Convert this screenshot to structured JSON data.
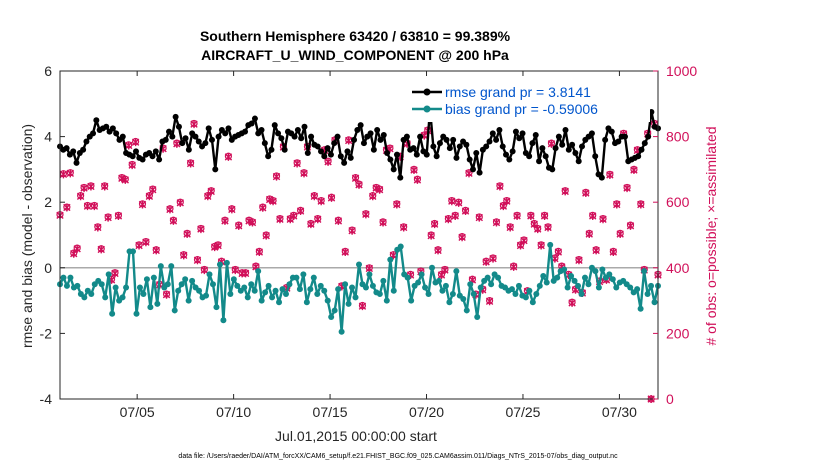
{
  "chart_data": {
    "type": "line",
    "title": "Southern Hemisphere 63420 / 63810 = 99.389%",
    "subtitle": "AIRCRAFT_U_WIND_COMPONENT @ 200 hPa",
    "xlabel": "Jul.01,2015 00:00:00 start",
    "ylabel": "rmse and bias (model - observation)",
    "ylabel_right": "# of obs: o=possible; ×=assimilated",
    "xlim": [
      1,
      32
    ],
    "ylim": [
      -4,
      6
    ],
    "ylim_right": [
      0,
      1000
    ],
    "x_tick_values": [
      5,
      10,
      15,
      20,
      25,
      30
    ],
    "x_tick_labels": [
      "07/05",
      "07/10",
      "07/15",
      "07/20",
      "07/25",
      "07/30"
    ],
    "y_ticks": [
      -4,
      -2,
      0,
      2,
      4,
      6
    ],
    "y_ticks_right": [
      0,
      200,
      400,
      600,
      800,
      1000
    ],
    "colors": {
      "rmse": "#000000",
      "bias": "#138a8a",
      "obs": "#d1105a",
      "zero_line": "#aaaaaa",
      "legend_text": "#0055cc"
    },
    "series": [
      {
        "name": "rmse grand pr = 3.8141",
        "axis": "left",
        "values": [
          3.7,
          3.6,
          3.65,
          3.45,
          3.55,
          3.2,
          3.5,
          3.6,
          3.85,
          4.0,
          4.1,
          4.5,
          4.2,
          4.25,
          4.3,
          4.15,
          4.25,
          4.1,
          3.9,
          4.0,
          3.5,
          3.45,
          3.4,
          3.55,
          3.35,
          3.3,
          3.45,
          3.5,
          3.4,
          3.55,
          3.3,
          3.85,
          3.9,
          4.15,
          4.0,
          4.6,
          4.3,
          3.8,
          3.95,
          3.6,
          4.1,
          4.0,
          3.85,
          3.7,
          3.8,
          4.25,
          3.9,
          3.0,
          4.0,
          4.2,
          4.1,
          4.25,
          3.9,
          4.0,
          4.05,
          4.1,
          4.15,
          4.35,
          4.4,
          4.55,
          4.1,
          4.2,
          3.8,
          3.4,
          3.6,
          4.35,
          4.1,
          3.95,
          3.6,
          4.15,
          4.1,
          4.0,
          4.2,
          3.95,
          4.3,
          3.5,
          4.0,
          3.75,
          3.7,
          3.55,
          3.4,
          3.65,
          3.45,
          3.8,
          4.0,
          3.4,
          3.2,
          3.55,
          3.35,
          3.9,
          4.2,
          4.35,
          3.8,
          4.0,
          4.1,
          3.6,
          4.2,
          3.9,
          4.05,
          3.5,
          3.3,
          3.0,
          3.45,
          2.75,
          3.9,
          4.0,
          3.6,
          3.65,
          3.45,
          4.0,
          3.55,
          3.45,
          4.85,
          3.7,
          3.4,
          3.8,
          4.0,
          3.9,
          3.65,
          3.9,
          3.35,
          3.7,
          3.85,
          3.75,
          3.3,
          3.0,
          3.5,
          2.9,
          3.6,
          3.7,
          3.85,
          4.1,
          3.9,
          4.2,
          3.7,
          3.45,
          3.3,
          3.55,
          4.15,
          3.95,
          4.1,
          3.5,
          3.4,
          3.8,
          4.05,
          3.25,
          3.65,
          3.4,
          3.05,
          3.0,
          3.65,
          4.0,
          3.75,
          4.2,
          3.6,
          3.75,
          3.5,
          3.25,
          3.7,
          3.9,
          4.0,
          4.1,
          3.4,
          2.85,
          2.75,
          3.9,
          4.25,
          4.15,
          3.8,
          3.85,
          4.0,
          4.0,
          3.25,
          3.3,
          3.35,
          3.4,
          3.6,
          3.8,
          4.0,
          4.75,
          4.3,
          4.25
        ]
      },
      {
        "name": "bias grand pr = -0.59006",
        "axis": "left",
        "values": [
          -0.5,
          -0.3,
          -0.55,
          -0.3,
          -0.6,
          -0.55,
          -0.8,
          -0.9,
          -0.7,
          -0.8,
          -0.5,
          -0.4,
          -0.5,
          -0.9,
          -0.2,
          -1.4,
          -0.6,
          -1.0,
          -0.9,
          -0.6,
          0.5,
          0.5,
          -1.4,
          -0.6,
          -0.8,
          -0.35,
          -1.2,
          -0.3,
          -1.1,
          0.05,
          -0.6,
          -0.5,
          0.05,
          -1.3,
          -0.7,
          -0.5,
          -0.35,
          -1.0,
          -0.4,
          -0.6,
          -0.7,
          -0.9,
          -0.85,
          -0.2,
          -0.5,
          -1.2,
          0.1,
          -1.6,
          0.15,
          -0.8,
          -0.35,
          -0.55,
          -0.7,
          -0.6,
          -0.9,
          -0.5,
          -0.7,
          -0.1,
          -1.0,
          -0.75,
          -0.55,
          -0.9,
          -0.7,
          -1.05,
          -0.65,
          -0.8,
          -0.5,
          -0.3,
          -0.3,
          -0.65,
          -0.2,
          -1.05,
          -0.65,
          -0.3,
          -0.8,
          -0.55,
          -0.7,
          -1.0,
          -1.5,
          -1.3,
          -0.65,
          -1.95,
          -0.5,
          -1.1,
          -0.6,
          -0.9,
          0.1,
          -0.5,
          -0.6,
          -0.2,
          -0.55,
          -0.75,
          -0.8,
          -0.4,
          -1.0,
          0.25,
          -0.7,
          0.55,
          0.65,
          -0.2,
          -0.3,
          -1.0,
          -0.55,
          -0.45,
          -0.2,
          -0.6,
          -0.8,
          0.0,
          -0.45,
          -0.4,
          -0.7,
          -0.55,
          -1.05,
          -0.8,
          -0.1,
          -0.85,
          -0.95,
          -1.3,
          -0.5,
          -0.8,
          -1.5,
          -0.6,
          -0.4,
          -0.3,
          -0.5,
          -0.2,
          -0.3,
          -0.55,
          -0.6,
          -0.7,
          -0.65,
          -0.8,
          -0.55,
          -0.85,
          -0.9,
          -0.7,
          -1.05,
          -0.8,
          -0.55,
          -0.25,
          -0.45,
          0.7,
          -0.4,
          -0.3,
          -0.1,
          -0.05,
          -0.6,
          -0.25,
          -0.4,
          -0.55,
          -0.8,
          -0.3,
          -0.5,
          0.0,
          -0.1,
          -0.6,
          -0.05,
          -0.3,
          -0.2,
          -0.35,
          -0.6,
          -0.45,
          -0.4,
          -0.5,
          -0.6,
          -0.75,
          -0.65,
          -1.25,
          -0.1,
          -0.8,
          -0.55,
          -1.05,
          -0.55
        ]
      },
      {
        "name": "obs possible",
        "axis": "right",
        "values": [
          562,
          687,
          585,
          690,
          445,
          460,
          620,
          645,
          590,
          650,
          590,
          525,
          458,
          650,
          555,
          365,
          385,
          560,
          675,
          670,
          775,
          715,
          785,
          470,
          595,
          480,
          620,
          640,
          455,
          350,
          765,
          320,
          580,
          545,
          780,
          600,
          440,
          505,
          720,
          840,
          425,
          520,
          395,
          620,
          635,
          465,
          470,
          420,
          545,
          740,
          580,
          395,
          530,
          385,
          385,
          545,
          540,
          405,
          450,
          585,
          500,
          610,
          605,
          680,
          550,
          770,
          340,
          550,
          560,
          720,
          575,
          690,
          770,
          535,
          620,
          550,
          605,
          760,
          725,
          615,
          790,
          545,
          345,
          450,
          790,
          515,
          675,
          655,
          285,
          565,
          400,
          620,
          645,
          640,
          540,
          760,
          765,
          440,
          595,
          740,
          525,
          780,
          380,
          700,
          670,
          390,
          805,
          820,
          500,
          535,
          455,
          380,
          395,
          550,
          605,
          560,
          600,
          495,
          575,
          690,
          365,
          320,
          555,
          335,
          420,
          300,
          430,
          540,
          650,
          590,
          605,
          525,
          405,
          560,
          470,
          485,
          330,
          560,
          535,
          520,
          470,
          560,
          525,
          780,
          430,
          450,
          405,
          635,
          380,
          295,
          335,
          425,
          325,
          630,
          505,
          560,
          455,
          360,
          550,
          365,
          685,
          450,
          595,
          505,
          810,
          645,
          530,
          700,
          760,
          595,
          395,
          810,
          0,
          840,
          380
        ]
      },
      {
        "name": "obs assimilated",
        "axis": "right",
        "values": [
          560,
          685,
          584,
          688,
          443,
          458,
          618,
          643,
          588,
          648,
          588,
          523,
          456,
          648,
          553,
          363,
          383,
          558,
          673,
          668,
          773,
          713,
          783,
          468,
          593,
          478,
          618,
          638,
          453,
          348,
          763,
          318,
          578,
          543,
          778,
          598,
          438,
          503,
          718,
          838,
          423,
          518,
          393,
          618,
          633,
          463,
          468,
          418,
          543,
          738,
          578,
          393,
          528,
          383,
          383,
          543,
          538,
          403,
          448,
          583,
          498,
          608,
          603,
          678,
          548,
          768,
          338,
          548,
          558,
          718,
          573,
          688,
          768,
          533,
          618,
          548,
          603,
          758,
          723,
          613,
          788,
          543,
          343,
          448,
          788,
          513,
          673,
          653,
          283,
          563,
          398,
          618,
          643,
          638,
          538,
          758,
          763,
          438,
          593,
          738,
          523,
          778,
          378,
          698,
          668,
          388,
          803,
          818,
          498,
          533,
          453,
          378,
          393,
          548,
          603,
          558,
          598,
          493,
          573,
          688,
          363,
          318,
          553,
          333,
          418,
          298,
          428,
          538,
          648,
          588,
          603,
          523,
          403,
          558,
          468,
          483,
          328,
          558,
          533,
          518,
          468,
          558,
          523,
          778,
          428,
          448,
          403,
          633,
          378,
          293,
          333,
          423,
          323,
          628,
          503,
          558,
          453,
          358,
          548,
          363,
          683,
          448,
          593,
          503,
          808,
          643,
          528,
          698,
          758,
          593,
          393,
          808,
          0,
          838,
          378
        ]
      }
    ]
  },
  "footer": {
    "data_file": "data file: /Users/raeder/DAI/ATM_forcXX/CAM6_setup/f.e21.FHIST_BGC.f09_025.CAM6assim.011/Diags_NTrS_2015-07/obs_diag_output.nc"
  }
}
